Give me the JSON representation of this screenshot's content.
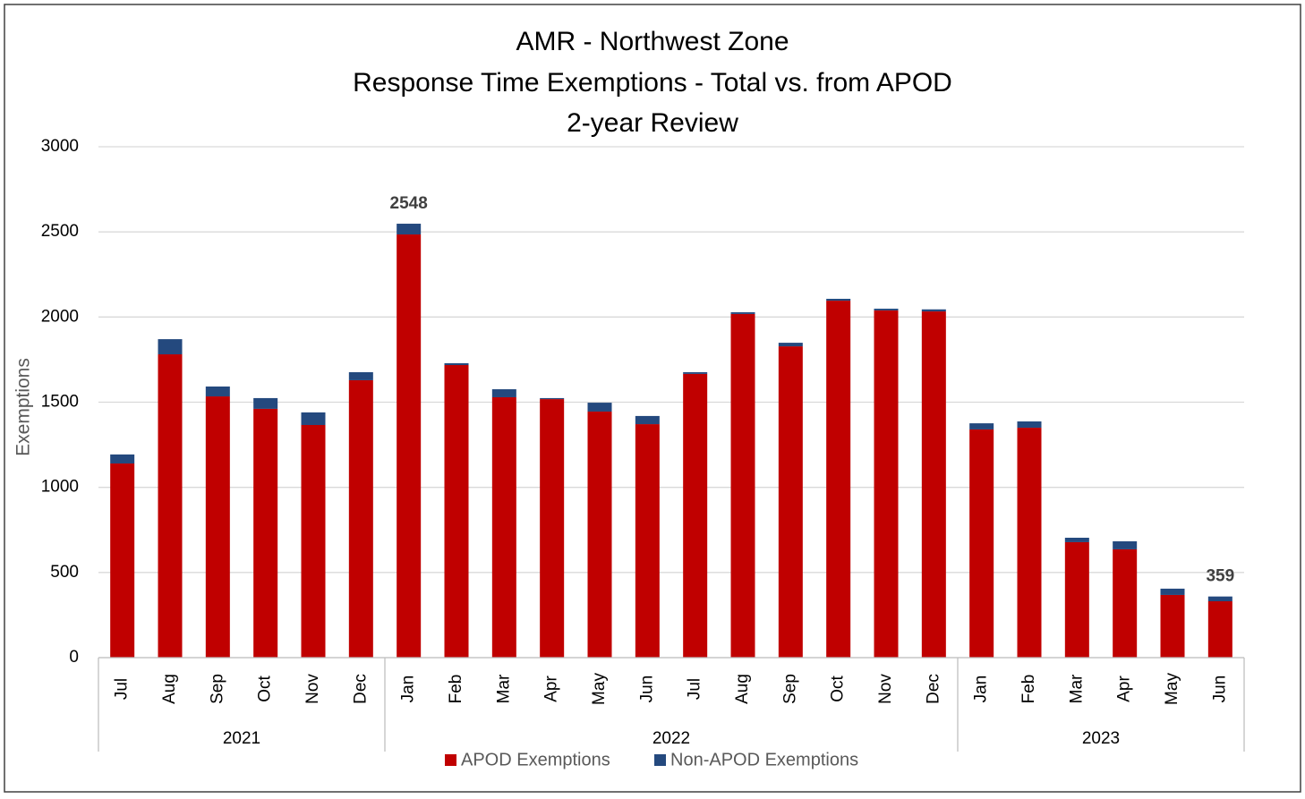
{
  "chart_data": {
    "type": "stacked_bar",
    "title": [
      "AMR - Northwest Zone",
      "Response Time Exemptions  - Total vs. from APOD",
      "2-year Review"
    ],
    "y_label": "Exemptions",
    "categories": [
      "Jul",
      "Aug",
      "Sep",
      "Oct",
      "Nov",
      "Dec",
      "Jan",
      "Feb",
      "Mar",
      "Apr",
      "May",
      "Jun",
      "Jul",
      "Aug",
      "Sep",
      "Oct",
      "Nov",
      "Dec",
      "Jan",
      "Feb",
      "Mar",
      "Apr",
      "May",
      "Jun"
    ],
    "groups": [
      {
        "label": "2021",
        "size": 6
      },
      {
        "label": "2022",
        "size": 12
      },
      {
        "label": "2023",
        "size": 6
      }
    ],
    "series": [
      {
        "name": "APOD Exemptions",
        "color": "#c00000",
        "values": [
          1140,
          1781,
          1534,
          1461,
          1366,
          1629,
          2485,
          1718,
          1529,
          1518,
          1445,
          1371,
          1666,
          2018,
          1828,
          2096,
          2039,
          2033,
          1340,
          1350,
          678,
          636,
          368,
          331
        ]
      },
      {
        "name": "Non-APOD Exemptions",
        "color": "#24497e",
        "values": [
          53,
          89,
          58,
          63,
          74,
          47,
          63,
          11,
          47,
          6,
          52,
          48,
          10,
          10,
          21,
          11,
          10,
          12,
          36,
          37,
          26,
          47,
          37,
          28
        ]
      }
    ],
    "total_labels": [
      {
        "index": 6,
        "value": 2548
      },
      {
        "index": 23,
        "value": 359
      }
    ],
    "ylim": [
      0,
      3000
    ],
    "yticks": [
      0,
      500,
      1000,
      1500,
      2000,
      2500,
      3000
    ],
    "grid": true,
    "legend": "bottom"
  }
}
